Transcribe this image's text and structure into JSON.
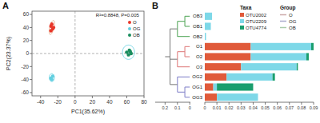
{
  "chart_data": [
    {
      "type": "scatter",
      "title": "A",
      "xlabel": "PC1(35.62%)",
      "ylabel": "PC2(23.37%)",
      "annotation": "R²=0.8848, P=0.005",
      "xlim": [
        -50,
        80
      ],
      "ylim": [
        -65,
        65
      ],
      "xticks": [
        -40,
        -20,
        0,
        20,
        40,
        60,
        80
      ],
      "yticks": [
        -60,
        -40,
        -20,
        0,
        20,
        40,
        60
      ],
      "legend": "upper right",
      "ref_lines": {
        "x": [
          0
        ],
        "y": [
          0
        ]
      },
      "series": [
        {
          "name": "O",
          "color": "#e8372a",
          "x": [
            -28,
            -26,
            -28,
            -27,
            -25
          ],
          "values": [
            35,
            38,
            42,
            45,
            40
          ],
          "ellipse": {
            "center": [
              -27,
              40
            ],
            "width": 5,
            "height": 22,
            "angle": -10,
            "color": "#e8aa88"
          }
        },
        {
          "name": "OG",
          "color": "#62cfe0",
          "x": [
            -28,
            -26,
            -27
          ],
          "values": [
            -38,
            -35,
            -40
          ],
          "ellipse": {
            "center": [
              -27,
              -37
            ],
            "width": 6,
            "height": 12,
            "angle": 0,
            "color": "#62cfe0"
          }
        },
        {
          "name": "OB",
          "color": "#1a8e5f",
          "x": [
            60,
            63,
            62,
            65,
            64
          ],
          "values": [
            2,
            5,
            -2,
            0,
            3
          ],
          "ellipse": {
            "center": [
              62,
              2
            ],
            "width": 14,
            "height": 22,
            "angle": 0,
            "color": "#62cfe0"
          }
        }
      ]
    },
    {
      "type": "dendrogram",
      "xlim": [
        0.28,
        -0.005
      ],
      "xticks": [
        0.2,
        0.1,
        0
      ],
      "leaves": [
        "OB3",
        "OB1",
        "OB2",
        "O1",
        "O2",
        "O3",
        "OG2",
        "OG1",
        "OG3"
      ],
      "merges": [
        {
          "members": [
            "OB3",
            "OB1"
          ],
          "height": 0.04,
          "color": "#5aaa60"
        },
        {
          "members": [
            "OB3",
            "OB1",
            "OB2"
          ],
          "height": 0.1,
          "color": "#5aaa60"
        },
        {
          "members": [
            "O1",
            "O2"
          ],
          "height": 0.04,
          "color": "#e08080"
        },
        {
          "members": [
            "O1",
            "O2",
            "O3"
          ],
          "height": 0.1,
          "color": "#e08080"
        },
        {
          "members": [
            "OG1",
            "OG3"
          ],
          "height": 0.04,
          "color": "#8888cc"
        },
        {
          "members": [
            "OG2",
            "OG1",
            "OG3"
          ],
          "height": 0.1,
          "color": "#8888cc"
        },
        {
          "members": [
            "OB3",
            "OB1",
            "OB2",
            "O1",
            "O2",
            "O3",
            "OG2",
            "OG1",
            "OG3"
          ],
          "height": 0.16,
          "color": "gray"
        }
      ],
      "root": {
        "height": 0.2,
        "color": "gray"
      }
    },
    {
      "type": "bar",
      "orientation": "horizontal",
      "stacked": true,
      "title": "B",
      "categories": [
        "OB3",
        "OB1",
        "OB2",
        "O1",
        "O2",
        "O3",
        "OG2",
        "OG1",
        "OG3"
      ],
      "xlim": [
        0,
        0.09
      ],
      "xticks": [
        0,
        0.01,
        0.02,
        0.03,
        0.04,
        0.05,
        0.06,
        0.07,
        0.08,
        0.09
      ],
      "legend_title": "Taxa",
      "series": [
        {
          "name": "OTU2002",
          "color": "#e05a3a",
          "values": [
            0.0,
            0.0,
            0.0,
            0.038,
            0.038,
            0.03,
            0.018,
            0.007,
            0.01
          ]
        },
        {
          "name": "OTU2209",
          "color": "#7ed8e8",
          "values": [
            0.006,
            0.005,
            0.001,
            0.05,
            0.046,
            0.046,
            0.038,
            0.003,
            0.034
          ]
        },
        {
          "name": "OTU4774",
          "color": "#1a9e6e",
          "values": [
            0.0,
            0.0,
            0.0,
            0.002,
            0.002,
            0.001,
            0.002,
            0.03,
            0.0
          ]
        }
      ],
      "group_legend": {
        "title": "Group",
        "names": [
          "O",
          "OG",
          "OB"
        ],
        "colors": [
          "#ccaaaa",
          "#aaaacc",
          "#aaccaa"
        ]
      }
    }
  ]
}
